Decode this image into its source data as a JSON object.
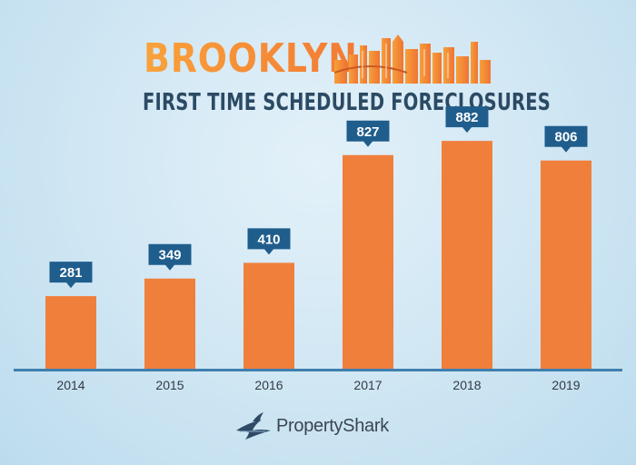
{
  "title": "BROOKLYN",
  "subtitle": "FIRST TIME SCHEDULED FORECLOSURES",
  "brand": {
    "name": "PropertyShark",
    "icon": "shark-fin-icon"
  },
  "colors": {
    "bar": "#f07f3c",
    "label_box": "#1f5d8c",
    "axis": "#3f7fae",
    "title": "#f48a36",
    "subtitle": "#2b4a64"
  },
  "chart_data": {
    "type": "bar",
    "categories": [
      "2014",
      "2015",
      "2016",
      "2017",
      "2018",
      "2019"
    ],
    "values": [
      281,
      349,
      410,
      827,
      882,
      806
    ],
    "title": "FIRST TIME SCHEDULED FORECLOSURES",
    "xlabel": "",
    "ylabel": "",
    "ylim": [
      0,
      900
    ],
    "grid": false,
    "data_labels": true
  }
}
